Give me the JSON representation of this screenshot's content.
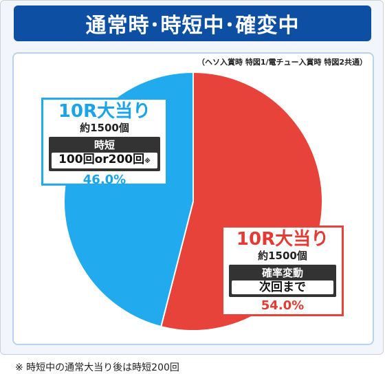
{
  "title": "通常時･時短中･確変中",
  "note_top": "（ヘソ入賞時 特図1/電チュー入賞時 特図2共通）",
  "footnote": "※ 時短中の通常大当り後は時短200回",
  "chart_data": {
    "type": "pie",
    "slices": [
      {
        "label": "10R大当り",
        "value": 54.0,
        "color": "#e8433a"
      },
      {
        "label": "10R大当り",
        "value": 46.0,
        "color": "#21aaee"
      }
    ]
  },
  "labels": {
    "blue": {
      "title": "10R大当り",
      "payout": "約1500個",
      "mode": "時短",
      "mode_detail": "100回or200回",
      "mode_note": "※",
      "percent": "46.0%"
    },
    "red": {
      "title": "10R大当り",
      "payout": "約1500個",
      "mode": "確率変動",
      "mode_detail": "次回まで",
      "percent": "54.0%"
    }
  }
}
